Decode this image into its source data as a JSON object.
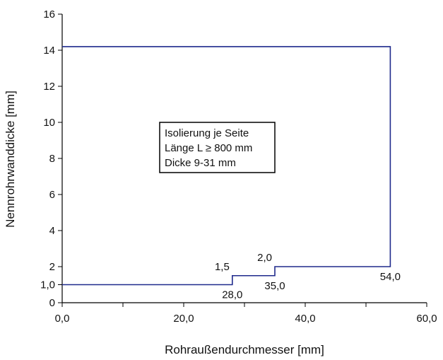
{
  "chart_data": {
    "type": "line",
    "title": "",
    "xlabel": "Rohraußendurchmesser [mm]",
    "ylabel": "Nennrohrwanddicke [mm]",
    "xlim": [
      0,
      60
    ],
    "ylim": [
      0,
      16
    ],
    "x_ticks": [
      0,
      20,
      40,
      60
    ],
    "x_tick_labels": [
      "0,0",
      "20,0",
      "40,0",
      "60,0"
    ],
    "y_ticks": [
      0,
      1,
      2,
      4,
      6,
      8,
      10,
      12,
      14,
      16
    ],
    "y_tick_labels": [
      "0",
      "1,0",
      "2",
      "4",
      "6",
      "8",
      "10",
      "12",
      "14",
      "16"
    ],
    "grid": false,
    "legend": "none",
    "line_color": "#1f2a8c",
    "series": [
      {
        "x": [
          0,
          28,
          28,
          35,
          35,
          54,
          54,
          0
        ],
        "y": [
          1.0,
          1.0,
          1.5,
          1.5,
          2.0,
          2.0,
          14.2,
          14.2
        ]
      }
    ],
    "data_labels": [
      {
        "text": "1,5",
        "x": 28,
        "y": 1.5,
        "anchor": "upper-left"
      },
      {
        "text": "28,0",
        "x": 28,
        "y": 1.0,
        "anchor": "below"
      },
      {
        "text": "2,0",
        "x": 35,
        "y": 2.0,
        "anchor": "upper-left"
      },
      {
        "text": "35,0",
        "x": 35,
        "y": 1.5,
        "anchor": "below"
      },
      {
        "text": "54,0",
        "x": 54,
        "y": 2.0,
        "anchor": "below"
      }
    ],
    "annotation": {
      "lines": [
        "Isolierung je Seite",
        "Länge L ≥ 800 mm",
        "Dicke 9-31 mm"
      ]
    }
  }
}
